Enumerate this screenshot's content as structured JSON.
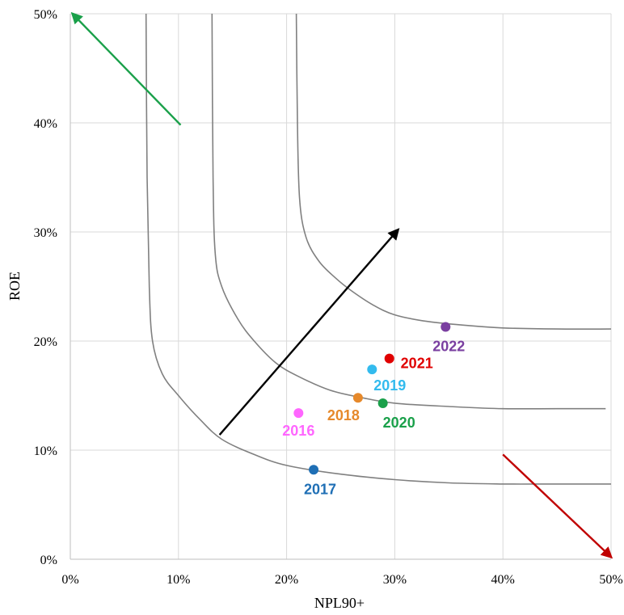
{
  "chart_data": {
    "type": "scatter",
    "xlabel": "NPL90+",
    "ylabel": "ROE",
    "xlim": [
      0,
      50
    ],
    "ylim": [
      0,
      50
    ],
    "xticks": [
      0,
      10,
      20,
      30,
      40,
      50
    ],
    "yticks": [
      0,
      10,
      20,
      30,
      40,
      50
    ],
    "xtick_labels": [
      "0%",
      "10%",
      "20%",
      "30%",
      "40%",
      "50%"
    ],
    "ytick_labels": [
      "0%",
      "10%",
      "20%",
      "30%",
      "40%",
      "50%"
    ],
    "grid": true,
    "points": [
      {
        "label": "2016",
        "x": 21.1,
        "y": 13.4,
        "color": "#ff66ff"
      },
      {
        "label": "2017",
        "x": 22.5,
        "y": 8.2,
        "color": "#1f6fb5"
      },
      {
        "label": "2018",
        "x": 26.6,
        "y": 14.8,
        "color": "#e6892b"
      },
      {
        "label": "2019",
        "x": 27.9,
        "y": 17.4,
        "color": "#33bbee"
      },
      {
        "label": "2020",
        "x": 28.9,
        "y": 14.3,
        "color": "#1aa04a"
      },
      {
        "label": "2021",
        "x": 29.5,
        "y": 18.4,
        "color": "#e00000"
      },
      {
        "label": "2022",
        "x": 34.7,
        "y": 21.3,
        "color": "#7a3fa0"
      }
    ],
    "curves": [
      [
        [
          7.0,
          50
        ],
        [
          7.1,
          35
        ],
        [
          7.3,
          25
        ],
        [
          7.6,
          20
        ],
        [
          8.5,
          17
        ],
        [
          10,
          15
        ],
        [
          12,
          12.8
        ],
        [
          14,
          11
        ],
        [
          17,
          9.6
        ],
        [
          20,
          8.6
        ],
        [
          25,
          7.8
        ],
        [
          30,
          7.3
        ],
        [
          35,
          7.0
        ],
        [
          40,
          6.9
        ],
        [
          45,
          6.9
        ],
        [
          50,
          6.9
        ]
      ],
      [
        [
          13.1,
          50
        ],
        [
          13.2,
          35
        ],
        [
          13.4,
          28
        ],
        [
          14,
          25
        ],
        [
          15.5,
          22
        ],
        [
          17,
          20
        ],
        [
          19,
          18
        ],
        [
          21,
          16.8
        ],
        [
          24,
          15.5
        ],
        [
          27,
          14.8
        ],
        [
          30,
          14.3
        ],
        [
          35,
          14.0
        ],
        [
          40,
          13.8
        ],
        [
          45,
          13.8
        ],
        [
          49.5,
          13.8
        ]
      ],
      [
        [
          20.9,
          50
        ],
        [
          21.0,
          40
        ],
        [
          21.2,
          33
        ],
        [
          21.8,
          29.5
        ],
        [
          23,
          27.3
        ],
        [
          24.5,
          25.8
        ],
        [
          26,
          24.6
        ],
        [
          28,
          23.3
        ],
        [
          30,
          22.4
        ],
        [
          33,
          21.8
        ],
        [
          37,
          21.4
        ],
        [
          40,
          21.2
        ],
        [
          45,
          21.1
        ],
        [
          50,
          21.1
        ]
      ]
    ],
    "arrows": [
      {
        "from": [
          10.2,
          39.8
        ],
        "to": [
          0.2,
          50
        ],
        "color": "#1aa04a"
      },
      {
        "from": [
          13.8,
          11.4
        ],
        "to": [
          30.3,
          30.2
        ],
        "color": "#000000"
      },
      {
        "from": [
          40,
          9.6
        ],
        "to": [
          50,
          0.2
        ],
        "color": "#c00000"
      }
    ]
  }
}
